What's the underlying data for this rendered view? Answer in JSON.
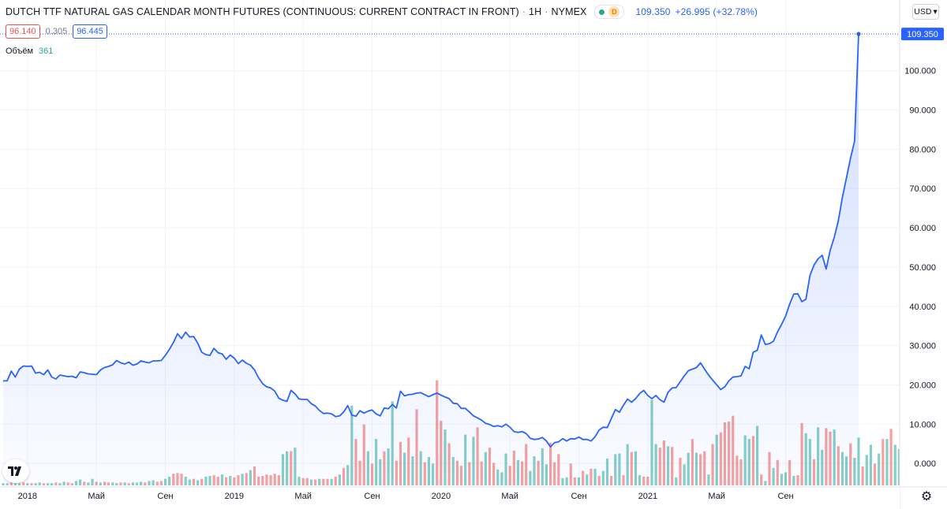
{
  "header": {
    "title": "DUTCH TTF NATURAL GAS CALENDAR MONTH FUTURES (CONTINUOUS: CURRENT CONTRACT IN FRONT)",
    "interval": "1Н",
    "exchange": "NYMEX",
    "separator": "·",
    "status_badge": "D",
    "last_price": "109.350",
    "change": "+26.995 (+32.78%)",
    "bid": "96.140",
    "spread": "0.305",
    "ask": "96.445",
    "volume_label": "Объём",
    "volume_value": "361",
    "currency": "USD",
    "currency_arrow": "▾"
  },
  "colors": {
    "line": "#2962ff",
    "area": "#2962ff",
    "up_bar": "#26a69a",
    "down_bar": "#ef5350",
    "grid": "#f0f3fa"
  },
  "icons": {
    "logo": "tradingview-logo-icon",
    "settings": "gear-icon"
  },
  "chart_data": {
    "type": "line",
    "ylim": [
      -6,
      116
    ],
    "y_ticks": [
      "0.000",
      "10.000",
      "20.000",
      "30.000",
      "40.000",
      "50.000",
      "60.000",
      "70.000",
      "80.000",
      "90.000",
      "100.000"
    ],
    "y_tick_values": [
      0,
      10,
      20,
      30,
      40,
      50,
      60,
      70,
      80,
      90,
      100
    ],
    "last_label": "109.350",
    "x_labels": [
      "2018",
      "Май",
      "Сен",
      "2019",
      "Май",
      "Сен",
      "2020",
      "Май",
      "Сен",
      "2021",
      "Май",
      "Сен"
    ],
    "x_label_index": [
      6,
      23,
      40,
      57,
      74,
      91,
      108,
      125,
      142,
      159,
      176,
      193
    ],
    "grid": true,
    "series": [
      {
        "values": [
          21,
          21,
          23.5,
          22,
          24,
          24.8,
          24.7,
          24.8,
          23,
          23.2,
          22.6,
          23.8,
          22,
          21.5,
          22.5,
          22.3,
          22.1,
          22.2,
          21.8,
          23.3,
          23.1,
          22.8,
          22.7,
          22.6,
          23.8,
          24.4,
          24.7,
          25.1,
          26.2,
          25.6,
          25.3,
          25.8,
          25,
          25.3,
          26.1,
          25.8,
          25.6,
          26.1,
          26.1,
          26.2,
          27.5,
          29,
          30.8,
          33,
          31.8,
          33.4,
          32.2,
          32.3,
          30.6,
          28.3,
          27.7,
          27.5,
          29.3,
          28.2,
          27.9,
          26.5,
          27.6,
          26.8,
          25.4,
          26.3,
          25.5,
          25,
          23.8,
          21.8,
          20.3,
          19.5,
          19.2,
          18.4,
          16.6,
          16.1,
          15.8,
          18.6,
          17.7,
          16.4,
          16.3,
          16.3,
          15.2,
          14.6,
          13.5,
          12.7,
          12.8,
          12.6,
          11.9,
          12.1,
          13.1,
          14.7,
          12.3,
          12,
          13.4,
          12.8,
          13.3,
          13.6,
          12.6,
          12.1,
          14.1,
          13.9,
          15,
          14.1,
          18.4,
          17.2,
          17.5,
          17.6,
          17.9,
          18,
          17.5,
          17,
          17.5,
          17.9,
          17.4,
          16.9,
          16.5,
          15.3,
          15.2,
          14,
          14,
          13.1,
          12.1,
          11.6,
          11,
          10.2,
          9.9,
          9.4,
          9.6,
          9.3,
          10,
          9.2,
          8.1,
          7.9,
          8.1,
          7.6,
          6.4,
          6.1,
          6.2,
          6.6,
          5.7,
          4.2,
          5.3,
          5.5,
          6.3,
          5.7,
          6.3,
          6.2,
          6.7,
          6.1,
          6.1,
          5.7,
          6.8,
          8.5,
          9.2,
          9.1,
          11.4,
          13.7,
          13,
          14.8,
          16.4,
          15.6,
          16.5,
          17.8,
          18.6,
          17.3,
          16.5,
          17.3,
          16.2,
          15.6,
          18.1,
          19.2,
          19.3,
          20.8,
          22.3,
          23.6,
          24,
          24.4,
          25.6,
          24,
          22.5,
          21.2,
          20,
          18.8,
          19.5,
          21,
          22,
          22.1,
          22.3,
          24.7,
          24.1,
          28.3,
          28.8,
          32.7,
          30.3,
          30.5,
          31.1,
          33.5,
          35.4,
          37.5,
          40.6,
          43.1,
          43.2,
          41.2,
          41.8,
          47.9,
          50.5,
          52.1,
          53,
          49.5,
          54.3,
          57.6,
          61.8,
          67.8,
          72.7,
          77.7,
          82.1,
          109.35
        ]
      }
    ],
    "volume": {
      "values": [
        0.3,
        0.3,
        0.4,
        0.3,
        0.3,
        0.4,
        0.3,
        0.3,
        0.3,
        0.4,
        0.3,
        0.3,
        0.3,
        0.4,
        0.3,
        0.5,
        0.4,
        0.3,
        0.6,
        0.8,
        0.5,
        0.4,
        0.9,
        0.5,
        0.4,
        0.5,
        0.4,
        0.4,
        0.3,
        0.4,
        0.4,
        0.3,
        0.4,
        0.4,
        0.5,
        0.4,
        0.6,
        0.7,
        0.5,
        0.6,
        0.9,
        1.2,
        1.6,
        1.7,
        1.6,
        1.2,
        0.8,
        0.9,
        0.7,
        0.9,
        1.2,
        1.3,
        1.4,
        1.2,
        1.5,
        1.1,
        1.3,
        1.1,
        1.4,
        1.6,
        1.7,
        2.1,
        2.6,
        1.2,
        1.3,
        1.5,
        1.4,
        1.6,
        1.4,
        4.3,
        4.7,
        4.7,
        5.2,
        1.2,
        1.0,
        1.0,
        0.8,
        0.8,
        0.9,
        0.9,
        0.9,
        0.9,
        1.2,
        1.5,
        2.4,
        2.8,
        11.0,
        6.4,
        3.4,
        8.4,
        4.7,
        3.0,
        6.4,
        3.6,
        4.7,
        5.1,
        11.6,
        3.4,
        6.0,
        4.5,
        6.6,
        4.0,
        10.5,
        4.7,
        3.2,
        3.9,
        3.0,
        14.5,
        8.9,
        7.7,
        5.8,
        3.9,
        3.4,
        2.7,
        7.0,
        3.2,
        6.7,
        8.0,
        3.3,
        4.6,
        5.2,
        3.1,
        2.2,
        1.8,
        4.4,
        2.7,
        4.8,
        3.5,
        3.3,
        5.7,
        2.0,
        4.0,
        3.4,
        5.1,
        2.9,
        5.9,
        3.2,
        4.3,
        1.0,
        1.1,
        3.0,
        1.1,
        1.1,
        2.0,
        1.5,
        2.3,
        2.3,
        1.3,
        2.0,
        3.7,
        1.3,
        4.3,
        4.4,
        1.4,
        5.7,
        4.6,
        4.7,
        1.4,
        1.2,
        1.2,
        11.8,
        5.7,
        5.2,
        6.2,
        5.4,
        5.3,
        1.1,
        3.8,
        2.9,
        4.5,
        6.4,
        4.5,
        4.3,
        4.7,
        1.5,
        5.7,
        7.0,
        7.3,
        8.7,
        8.8,
        9.6,
        4.1,
        3.6,
        6.9,
        6.4,
        6.8,
        8.2,
        1.5,
        0.6,
        4.6,
        2.4,
        3.5,
        1.6,
        1.8,
        3.5,
        1.3,
        1.4,
        8.6,
        7.2,
        6.4,
        3.6,
        8.0,
        4.9,
        7.9,
        7.4,
        7.7,
        5.4,
        4.6,
        4.0,
        5.8,
        3.8,
        6.6,
        2.6,
        4.2,
        5.6,
        3.0,
        4.4,
        6.4,
        6.4,
        7.8,
        5.6,
        5.0,
        6.6,
        3.4,
        4.7,
        5.5,
        5.6,
        4.5,
        2.7,
        2.0,
        1.8,
        2.0,
        4.7,
        5.4,
        2.4,
        2.8,
        1.9,
        1.9,
        1.6,
        0.6,
        0.6,
        0.6
      ],
      "up": [
        1,
        1,
        0,
        1,
        1,
        0,
        1,
        0,
        1,
        1,
        0,
        1,
        1,
        0,
        1,
        1,
        0,
        0,
        1,
        1,
        0,
        1,
        1,
        0,
        1,
        0,
        0,
        1,
        1,
        0,
        1,
        0,
        1,
        1,
        1,
        0,
        1,
        1,
        0,
        0,
        1,
        1,
        0,
        0,
        0,
        1,
        1,
        0,
        1,
        0,
        1,
        1,
        0,
        0,
        1,
        0,
        1,
        0,
        0,
        1,
        0,
        1,
        0,
        0,
        0,
        0,
        0,
        0,
        0,
        1,
        1,
        0,
        1,
        1,
        0,
        0,
        1,
        0,
        1,
        0,
        0,
        1,
        0,
        1,
        0,
        1,
        1,
        0,
        0,
        0,
        1,
        0,
        1,
        1,
        0,
        1,
        1,
        0,
        0,
        1,
        0,
        1,
        0,
        1,
        0,
        1,
        1,
        0,
        0,
        1,
        0,
        1,
        0,
        0,
        1,
        0,
        1,
        0,
        0,
        1,
        0,
        0,
        1,
        1,
        1,
        0,
        0,
        1,
        0,
        0,
        1,
        1,
        0,
        1,
        1,
        0,
        0,
        0,
        1,
        1,
        0,
        0,
        1,
        0,
        1,
        0,
        1,
        0,
        1,
        1,
        0,
        1,
        1,
        0,
        1,
        0,
        1,
        1,
        0,
        0,
        1,
        1,
        0,
        0,
        1,
        0,
        1,
        0,
        1,
        1,
        0,
        1,
        0,
        0,
        1,
        0,
        1,
        0,
        0,
        0,
        0,
        0,
        0,
        1,
        1,
        0,
        1,
        0,
        1,
        0,
        1,
        0,
        1,
        1,
        0,
        1,
        0,
        0,
        1,
        1,
        0,
        1,
        1,
        0,
        0,
        1,
        0,
        1,
        1,
        0,
        1,
        1,
        0,
        1,
        1,
        0,
        1,
        0,
        1,
        0,
        1,
        1,
        0,
        1,
        1,
        0,
        1,
        1,
        0,
        0,
        1,
        1,
        0,
        1,
        1,
        0,
        1,
        1,
        0,
        1
      ]
    }
  }
}
